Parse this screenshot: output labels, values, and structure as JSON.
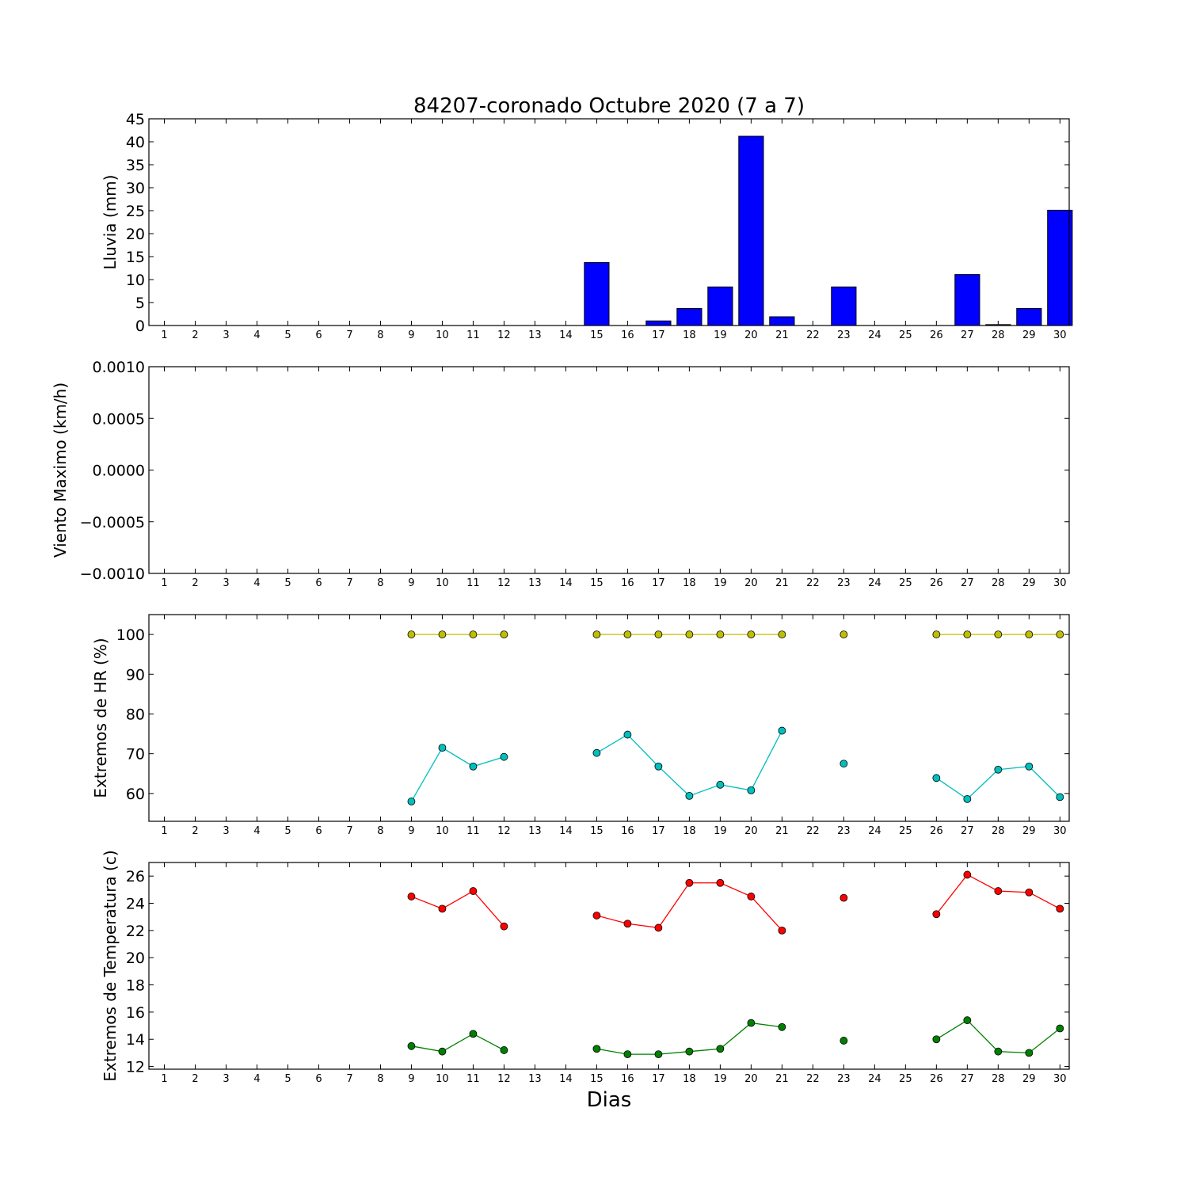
{
  "chart_data": [
    {
      "type": "bar",
      "title": "84207-coronado Octubre 2020  (7 a 7)",
      "ylabel": "Lluvia (mm)",
      "ylim": [
        0,
        45
      ],
      "yticks": [
        "0",
        "5",
        "10",
        "15",
        "20",
        "25",
        "30",
        "35",
        "40",
        "45"
      ],
      "categories": [
        1,
        2,
        3,
        4,
        5,
        6,
        7,
        8,
        9,
        10,
        11,
        12,
        13,
        14,
        15,
        16,
        17,
        18,
        19,
        20,
        21,
        22,
        23,
        24,
        25,
        26,
        27,
        28,
        29,
        30
      ],
      "values": [
        null,
        null,
        null,
        null,
        null,
        null,
        null,
        null,
        0,
        0,
        0,
        0,
        null,
        null,
        13.7,
        0,
        1,
        3.7,
        8.4,
        41.2,
        1.9,
        null,
        8.4,
        null,
        null,
        0,
        11.1,
        0.2,
        3.7,
        25.1
      ],
      "color": "#0000ff"
    },
    {
      "type": "line",
      "ylabel": "Viento Maximo (km/h)",
      "ylim": [
        -0.001,
        0.001
      ],
      "yticks": [
        "−0.0010",
        "−0.0005",
        "0.0000",
        "0.0005",
        "0.0010"
      ],
      "categories": [
        1,
        2,
        3,
        4,
        5,
        6,
        7,
        8,
        9,
        10,
        11,
        12,
        13,
        14,
        15,
        16,
        17,
        18,
        19,
        20,
        21,
        22,
        23,
        24,
        25,
        26,
        27,
        28,
        29,
        30
      ],
      "series": []
    },
    {
      "type": "line",
      "ylabel": "Extremos de HR (%)",
      "ylim": [
        53,
        105
      ],
      "yticks": [
        "60",
        "70",
        "80",
        "90",
        "100"
      ],
      "categories": [
        1,
        2,
        3,
        4,
        5,
        6,
        7,
        8,
        9,
        10,
        11,
        12,
        13,
        14,
        15,
        16,
        17,
        18,
        19,
        20,
        21,
        22,
        23,
        24,
        25,
        26,
        27,
        28,
        29,
        30
      ],
      "series": [
        {
          "color": "#bfbf00",
          "values": [
            null,
            null,
            null,
            null,
            null,
            null,
            null,
            null,
            100,
            100,
            100,
            100,
            null,
            null,
            100,
            100,
            100,
            100,
            100,
            100,
            100,
            null,
            100,
            null,
            null,
            100,
            100,
            100,
            100,
            100
          ]
        },
        {
          "color": "#00bfbf",
          "values": [
            null,
            null,
            null,
            null,
            null,
            null,
            null,
            null,
            58,
            71.5,
            66.8,
            69.2,
            null,
            null,
            70.2,
            74.8,
            66.8,
            59.4,
            62.2,
            60.8,
            75.8,
            null,
            67.5,
            null,
            null,
            63.9,
            58.6,
            66,
            66.8,
            59.1
          ]
        }
      ]
    },
    {
      "type": "line",
      "ylabel": "Extremos de Temperatura (c)",
      "xlabel": "Dias",
      "ylim": [
        11.8,
        27
      ],
      "yticks": [
        "12",
        "14",
        "16",
        "18",
        "20",
        "22",
        "24",
        "26"
      ],
      "categories": [
        1,
        2,
        3,
        4,
        5,
        6,
        7,
        8,
        9,
        10,
        11,
        12,
        13,
        14,
        15,
        16,
        17,
        18,
        19,
        20,
        21,
        22,
        23,
        24,
        25,
        26,
        27,
        28,
        29,
        30
      ],
      "series": [
        {
          "color": "#ff0000",
          "values": [
            null,
            null,
            null,
            null,
            null,
            null,
            null,
            null,
            24.5,
            23.6,
            24.9,
            22.3,
            null,
            null,
            23.1,
            22.5,
            22.2,
            25.5,
            25.5,
            24.5,
            22,
            null,
            24.4,
            null,
            null,
            23.2,
            26.1,
            24.9,
            24.8,
            23.6
          ]
        },
        {
          "color": "#008000",
          "values": [
            null,
            null,
            null,
            null,
            null,
            null,
            null,
            null,
            13.5,
            13.1,
            14.4,
            13.2,
            null,
            null,
            13.3,
            12.9,
            12.9,
            13.1,
            13.3,
            15.2,
            14.9,
            null,
            13.9,
            null,
            null,
            14,
            15.4,
            13.1,
            13,
            14.8
          ]
        }
      ]
    }
  ]
}
